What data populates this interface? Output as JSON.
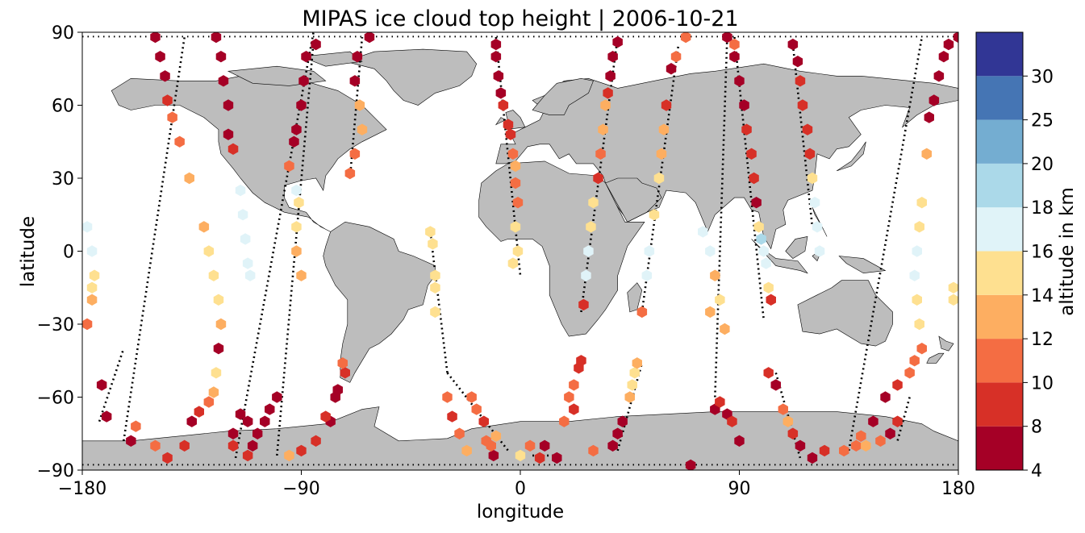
{
  "chart_data": {
    "type": "scatter",
    "title": "MIPAS ice cloud top height | 2006-10-21",
    "xlabel": "longitude",
    "ylabel": "latitude",
    "xlim": [
      -180,
      180
    ],
    "ylim": [
      -90,
      90
    ],
    "xticks": [
      "−180",
      "−90",
      "0",
      "90",
      "180"
    ],
    "yticks": [
      "90",
      "60",
      "30",
      "0",
      "−30",
      "−60",
      "−90"
    ],
    "colorbar": {
      "label": "altitude in km",
      "bounds": [
        4,
        8,
        10,
        12,
        14,
        16,
        18,
        20,
        25,
        30
      ],
      "tick_labels": [
        "4",
        "8",
        "10",
        "12",
        "14",
        "16",
        "18",
        "20",
        "25",
        "30"
      ],
      "colors": [
        "#a50026",
        "#d73027",
        "#f46d43",
        "#fdae61",
        "#fee090",
        "#e0f3f8",
        "#abd9e9",
        "#74add1",
        "#4575b4",
        "#313695"
      ]
    },
    "colors": {
      "land": "#bdbdbd",
      "coast": "#000000",
      "no_cloud": "#000000"
    },
    "tracks": [
      {
        "lon0": -163,
        "lat0": -78,
        "lon1": -138,
        "lat1": 88,
        "clouds": [
          [
            -160,
            -78,
            7
          ],
          [
            -158,
            -72,
            11
          ],
          [
            -150,
            -80,
            10
          ],
          [
            -145,
            -85,
            8
          ],
          [
            -138,
            -80,
            9
          ],
          [
            -135,
            -70,
            7
          ],
          [
            -132,
            -66,
            8
          ],
          [
            -128,
            -62,
            10
          ],
          [
            -126,
            -58,
            12
          ],
          [
            -125,
            -50,
            14
          ],
          [
            -124,
            -40,
            6
          ],
          [
            -123,
            -30,
            12
          ],
          [
            -124,
            -20,
            15
          ],
          [
            -126,
            -10,
            15
          ],
          [
            -128,
            0,
            14
          ],
          [
            -130,
            10,
            13
          ],
          [
            -136,
            30,
            12
          ],
          [
            -140,
            45,
            10
          ],
          [
            -143,
            55,
            11
          ],
          [
            -145,
            62,
            9
          ],
          [
            -146,
            72,
            7
          ],
          [
            -148,
            80,
            6
          ],
          [
            -150,
            88,
            6
          ]
        ]
      },
      {
        "lon0": -173,
        "lat0": -70,
        "lon1": -163,
        "lat1": -40,
        "clouds": [
          [
            -170,
            -68,
            7
          ],
          [
            -172,
            -55,
            6
          ],
          [
            -178,
            -30,
            10
          ],
          [
            -176,
            -20,
            13
          ],
          [
            -175,
            -10,
            15
          ],
          [
            -176,
            0,
            17
          ],
          [
            -178,
            10,
            16
          ],
          [
            -176,
            -15,
            15
          ]
        ]
      },
      {
        "lon0": -117,
        "lat0": -85,
        "lon1": -85,
        "lat1": 90,
        "clouds": [
          [
            -112,
            -84,
            8
          ],
          [
            -110,
            -80,
            6
          ],
          [
            -108,
            -75,
            6
          ],
          [
            -105,
            -70,
            7
          ],
          [
            -103,
            -65,
            6
          ],
          [
            -100,
            -60,
            7
          ],
          [
            -118,
            -75,
            6
          ],
          [
            -118,
            -80,
            9
          ],
          [
            -112,
            -70,
            7
          ],
          [
            -115,
            -67,
            6
          ],
          [
            -120,
            60,
            6
          ],
          [
            -122,
            70,
            6
          ],
          [
            -123,
            80,
            6
          ],
          [
            -125,
            88,
            6
          ],
          [
            -120,
            48,
            6
          ],
          [
            -118,
            42,
            9
          ],
          [
            -115,
            25,
            16
          ],
          [
            -114,
            15,
            17
          ],
          [
            -113,
            5,
            17
          ],
          [
            -112,
            -5,
            17
          ],
          [
            -111,
            -10,
            17
          ]
        ]
      },
      {
        "lon0": -100,
        "lat0": -84,
        "lon1": -85,
        "lat1": 86,
        "clouds": [
          [
            -95,
            -84,
            12
          ],
          [
            -90,
            -82,
            8
          ],
          [
            -84,
            -78,
            9
          ],
          [
            -78,
            -70,
            7
          ],
          [
            -76,
            -60,
            6
          ],
          [
            -72,
            -50,
            8
          ],
          [
            -80,
            -68,
            8
          ],
          [
            -75,
            -57,
            6
          ],
          [
            -73,
            -46,
            10
          ],
          [
            -90,
            -10,
            12
          ],
          [
            -92,
            0,
            13
          ],
          [
            -92,
            10,
            15
          ],
          [
            -91,
            20,
            15
          ],
          [
            -92,
            25,
            16
          ],
          [
            -95,
            35,
            10
          ],
          [
            -93,
            45,
            7
          ],
          [
            -92,
            50,
            6
          ],
          [
            -90,
            60,
            7
          ],
          [
            -89,
            70,
            6
          ],
          [
            -88,
            80,
            6
          ],
          [
            -84,
            85,
            6
          ]
        ]
      },
      {
        "lon0": -30,
        "lat0": -50,
        "lon1": -5,
        "lat1": -82,
        "clouds": [
          [
            -30,
            -60,
            11
          ],
          [
            -28,
            -68,
            8
          ],
          [
            -25,
            -75,
            11
          ],
          [
            -22,
            -82,
            12
          ],
          [
            -20,
            -60,
            11
          ],
          [
            -18,
            -65,
            10
          ],
          [
            -15,
            -70,
            8
          ],
          [
            -14,
            -78,
            11
          ],
          [
            -11,
            -84,
            6
          ],
          [
            -12,
            -80,
            11
          ],
          [
            -10,
            -76,
            12
          ]
        ]
      },
      {
        "lon0": -37,
        "lat0": 8,
        "lon1": -30,
        "lat1": -50,
        "clouds": [
          [
            -37,
            8,
            14
          ],
          [
            -36,
            3,
            14
          ],
          [
            -35,
            -10,
            15
          ],
          [
            -35,
            -15,
            15
          ],
          [
            -35,
            -25,
            14
          ]
        ]
      },
      {
        "lon0": -70,
        "lat0": 30,
        "lon1": -65,
        "lat1": 88,
        "clouds": [
          [
            -70,
            32,
            11
          ],
          [
            -68,
            40,
            10
          ],
          [
            -65,
            50,
            12
          ],
          [
            -66,
            60,
            12
          ],
          [
            -68,
            70,
            7
          ],
          [
            -67,
            80,
            6
          ],
          [
            -62,
            88,
            6
          ]
        ]
      },
      {
        "lon0": -10,
        "lat0": 88,
        "lon1": 0,
        "lat1": -10,
        "clouds": [
          [
            -10,
            85,
            6
          ],
          [
            -10,
            80,
            6
          ],
          [
            -9,
            72,
            6
          ],
          [
            -8,
            65,
            7
          ],
          [
            -7,
            60,
            8
          ],
          [
            -5,
            52,
            8
          ],
          [
            -4,
            48,
            8
          ],
          [
            -3,
            40,
            10
          ],
          [
            -2,
            35,
            13
          ],
          [
            -2,
            28,
            10
          ],
          [
            -1,
            20,
            11
          ],
          [
            -2,
            10,
            14
          ],
          [
            -1,
            0,
            14
          ],
          [
            -3,
            -5,
            14
          ]
        ]
      },
      {
        "lon0": 5,
        "lat0": -84,
        "lon1": 15,
        "lat1": -84,
        "clouds": [
          [
            0,
            -84,
            14
          ],
          [
            4,
            -80,
            10
          ],
          [
            8,
            -85,
            9
          ],
          [
            10,
            -80,
            7
          ],
          [
            15,
            -85,
            7
          ],
          [
            18,
            -70,
            10
          ],
          [
            20,
            -60,
            10
          ],
          [
            22,
            -55,
            11
          ],
          [
            24,
            -48,
            9
          ],
          [
            25,
            -45,
            8
          ],
          [
            22,
            -65,
            8
          ]
        ]
      },
      {
        "lon0": 25,
        "lat0": -25,
        "lon1": 40,
        "lat1": 88,
        "clouds": [
          [
            26,
            -22,
            8
          ],
          [
            27,
            -10,
            17
          ],
          [
            28,
            0,
            17
          ],
          [
            29,
            10,
            15
          ],
          [
            30,
            20,
            14
          ],
          [
            32,
            30,
            9
          ],
          [
            33,
            40,
            11
          ],
          [
            34,
            50,
            13
          ],
          [
            35,
            60,
            12
          ],
          [
            36,
            65,
            9
          ],
          [
            37,
            72,
            6
          ],
          [
            38,
            80,
            6
          ],
          [
            40,
            86,
            6
          ]
        ]
      },
      {
        "lon0": 40,
        "lat0": -82,
        "lon1": 50,
        "lat1": -46,
        "clouds": [
          [
            30,
            -82,
            10
          ],
          [
            38,
            -80,
            6
          ],
          [
            40,
            -75,
            6
          ],
          [
            42,
            -70,
            7
          ],
          [
            45,
            -60,
            13
          ],
          [
            46,
            -55,
            14
          ],
          [
            47,
            -50,
            14
          ],
          [
            48,
            -46,
            12
          ]
        ]
      },
      {
        "lon0": 50,
        "lat0": -25,
        "lon1": 65,
        "lat1": 85,
        "clouds": [
          [
            50,
            -25,
            11
          ],
          [
            52,
            -10,
            17
          ],
          [
            53,
            0,
            16
          ],
          [
            55,
            15,
            15
          ],
          [
            57,
            30,
            14
          ],
          [
            58,
            40,
            13
          ],
          [
            59,
            50,
            12
          ],
          [
            60,
            60,
            9
          ],
          [
            62,
            75,
            6
          ],
          [
            64,
            80,
            10
          ],
          [
            68,
            88,
            10
          ]
        ]
      },
      {
        "lon0": 80,
        "lat0": -60,
        "lon1": 85,
        "lat1": 88,
        "clouds": [
          [
            70,
            -88,
            6
          ],
          [
            80,
            -65,
            7
          ],
          [
            82,
            -62,
            8
          ],
          [
            85,
            -67,
            7
          ],
          [
            87,
            -70,
            8
          ],
          [
            90,
            -78,
            6
          ],
          [
            75,
            8,
            16
          ],
          [
            78,
            0,
            17
          ],
          [
            80,
            -10,
            12
          ],
          [
            82,
            -20,
            14
          ],
          [
            84,
            -32,
            12
          ],
          [
            78,
            -25,
            13
          ],
          [
            85,
            88,
            6
          ],
          [
            88,
            85,
            10
          ]
        ]
      },
      {
        "lon0": 88,
        "lat0": 88,
        "lon1": 100,
        "lat1": -28,
        "clouds": [
          [
            88,
            80,
            6
          ],
          [
            90,
            70,
            6
          ],
          [
            92,
            60,
            6
          ],
          [
            93,
            50,
            8
          ],
          [
            95,
            40,
            9
          ],
          [
            96,
            30,
            9
          ],
          [
            97,
            20,
            7
          ],
          [
            98,
            10,
            15
          ],
          [
            99,
            5,
            19
          ],
          [
            100,
            0,
            16
          ],
          [
            101,
            -5,
            16
          ],
          [
            102,
            -15,
            15
          ],
          [
            103,
            -20,
            8
          ]
        ]
      },
      {
        "lon0": 105,
        "lat0": -50,
        "lon1": 115,
        "lat1": -85,
        "clouds": [
          [
            102,
            -50,
            8
          ],
          [
            105,
            -55,
            7
          ],
          [
            108,
            -65,
            11
          ],
          [
            110,
            -70,
            12
          ],
          [
            112,
            -75,
            8
          ],
          [
            115,
            -80,
            7
          ],
          [
            120,
            -85,
            7
          ],
          [
            125,
            -82,
            8
          ]
        ]
      },
      {
        "lon0": 112,
        "lat0": 85,
        "lon1": 120,
        "lat1": 10,
        "clouds": [
          [
            112,
            85,
            6
          ],
          [
            114,
            78,
            6
          ],
          [
            115,
            70,
            8
          ],
          [
            116,
            60,
            8
          ],
          [
            118,
            50,
            9
          ],
          [
            119,
            40,
            8
          ],
          [
            120,
            30,
            14
          ],
          [
            121,
            20,
            17
          ],
          [
            122,
            10,
            17
          ],
          [
            123,
            0,
            17
          ]
        ]
      },
      {
        "lon0": 135,
        "lat0": -82,
        "lon1": 165,
        "lat1": 88,
        "clouds": [
          [
            133,
            -82,
            10
          ],
          [
            138,
            -80,
            11
          ],
          [
            140,
            -76,
            10
          ],
          [
            145,
            -70,
            7
          ],
          [
            150,
            -60,
            7
          ],
          [
            155,
            -55,
            8
          ],
          [
            160,
            -50,
            11
          ],
          [
            162,
            -45,
            11
          ],
          [
            165,
            -40,
            11
          ],
          [
            164,
            -30,
            15
          ],
          [
            163,
            -20,
            14
          ],
          [
            162,
            -10,
            16
          ],
          [
            163,
            0,
            16
          ],
          [
            164,
            10,
            15
          ],
          [
            165,
            20,
            14
          ],
          [
            167,
            40,
            12
          ],
          [
            168,
            55,
            7
          ],
          [
            170,
            62,
            6
          ],
          [
            172,
            72,
            6
          ],
          [
            174,
            80,
            6
          ],
          [
            176,
            85,
            6
          ],
          [
            180,
            88,
            6
          ]
        ]
      },
      {
        "lon0": 160,
        "lat0": -60,
        "lon1": 155,
        "lat1": -78,
        "clouds": [
          [
            155,
            -70,
            9
          ],
          [
            152,
            -75,
            7
          ],
          [
            148,
            -78,
            11
          ],
          [
            142,
            -80,
            12
          ],
          [
            178,
            -20,
            14
          ],
          [
            178,
            -15,
            14
          ]
        ]
      }
    ]
  }
}
